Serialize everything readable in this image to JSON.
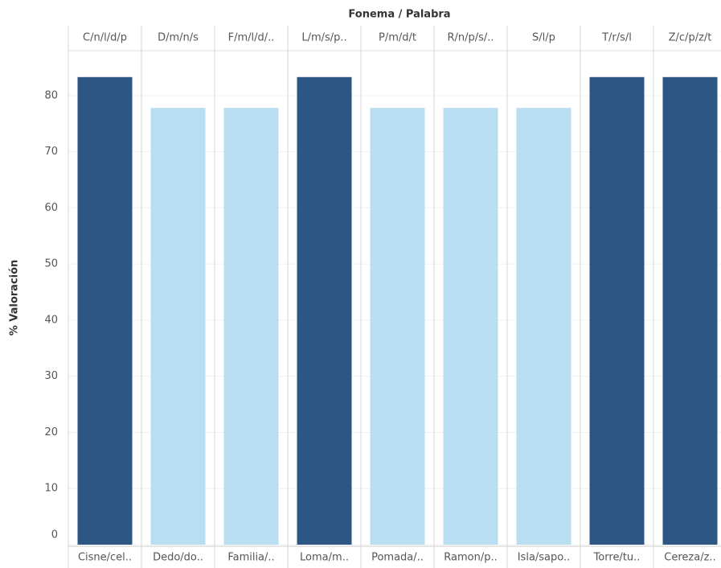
{
  "chart_data": {
    "type": "bar",
    "title": "Fonema / Palabra",
    "y_label": "% Valoración",
    "top_categories": [
      "C/n/l/d/p",
      "D/m/n/s",
      "F/m/l/d/..",
      "L/m/s/p..",
      "P/m/d/t",
      "R/n/p/s/..",
      "S/l/p",
      "T/r/s/l",
      "Z/c/p/z/t"
    ],
    "categories": [
      "Cisne/cel..",
      "Dedo/do..",
      "Familia/..",
      "Loma/m..",
      "Pomada/..",
      "Ramon/p..",
      "Isla/sapo..",
      "Torre/tu..",
      "Cereza/z.."
    ],
    "values": [
      83.3,
      77.8,
      77.8,
      83.3,
      77.8,
      77.8,
      77.8,
      83.3,
      83.3
    ],
    "colors": [
      "#2c5784",
      "#b9ddf1",
      "#b9ddf1",
      "#2c5784",
      "#b9ddf1",
      "#b9ddf1",
      "#b9ddf1",
      "#2c5784",
      "#2c5784"
    ],
    "ylim": [
      0,
      88
    ],
    "yticks": [
      0,
      10,
      20,
      30,
      40,
      50,
      60,
      70,
      80
    ],
    "grid": true
  }
}
